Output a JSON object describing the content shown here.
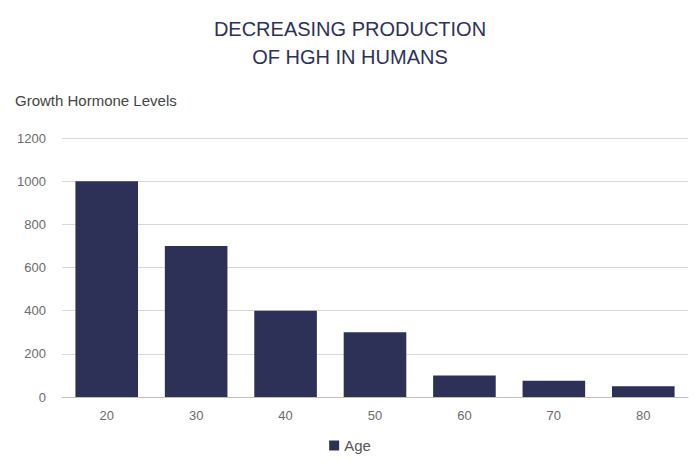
{
  "chart_data": {
    "type": "bar",
    "title": "DECREASING PRODUCTION\nOF HGH IN HUMANS",
    "y_label": "Growth Hormone Levels",
    "categories": [
      "20",
      "30",
      "40",
      "50",
      "60",
      "70",
      "80"
    ],
    "series": [
      {
        "name": "Age",
        "color": "#2d3158",
        "values": [
          1000,
          700,
          400,
          300,
          100,
          75,
          50
        ]
      }
    ],
    "ylim": [
      0,
      1200
    ],
    "yticks": [
      0,
      200,
      400,
      600,
      800,
      1000,
      1200
    ],
    "grid": true,
    "legend": "bottom"
  }
}
